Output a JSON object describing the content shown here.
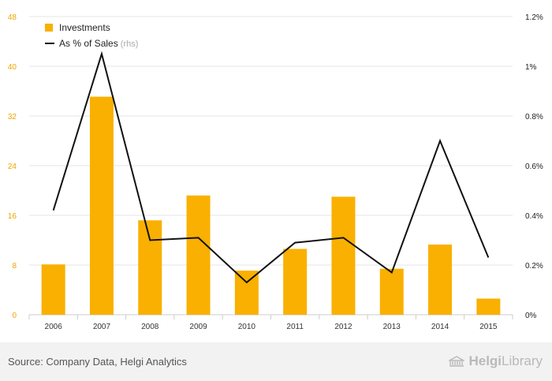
{
  "chart_data": {
    "type": "bar",
    "categories": [
      "2006",
      "2007",
      "2008",
      "2009",
      "2010",
      "2011",
      "2012",
      "2013",
      "2014",
      "2015"
    ],
    "series": [
      {
        "name": "Investments",
        "type": "bar",
        "axis": "left",
        "values": [
          8.1,
          35.1,
          15.2,
          19.2,
          7.1,
          10.6,
          19.0,
          7.4,
          11.3,
          2.6
        ]
      },
      {
        "name": "As % of Sales",
        "type": "line",
        "axis": "right",
        "values": [
          0.42,
          1.05,
          0.3,
          0.31,
          0.13,
          0.29,
          0.31,
          0.17,
          0.7,
          0.23
        ]
      }
    ],
    "legend": {
      "items": [
        {
          "label": "Investments",
          "suffix": ""
        },
        {
          "label": "As % of Sales",
          "suffix": " (rhs)"
        }
      ],
      "position": "top-left"
    },
    "y_left": {
      "ticks": [
        "0",
        "8",
        "16",
        "24",
        "32",
        "40",
        "48"
      ],
      "ylim": [
        0,
        48
      ]
    },
    "y_right": {
      "ticks": [
        "0%",
        "0.2%",
        "0.4%",
        "0.6%",
        "0.8%",
        "1%",
        "1.2%"
      ],
      "ylim": [
        0,
        1.2
      ]
    },
    "grid": true,
    "colors": {
      "bar": "#f9b000",
      "line": "#111111",
      "left_ticks": "#f0a500",
      "grid": "#e6e6e6"
    }
  },
  "footer": {
    "source": "Source: Company Data, Helgi Analytics",
    "brand_part1": "Helgi",
    "brand_part2": "Library",
    "brand_icon": "library-building-icon"
  }
}
